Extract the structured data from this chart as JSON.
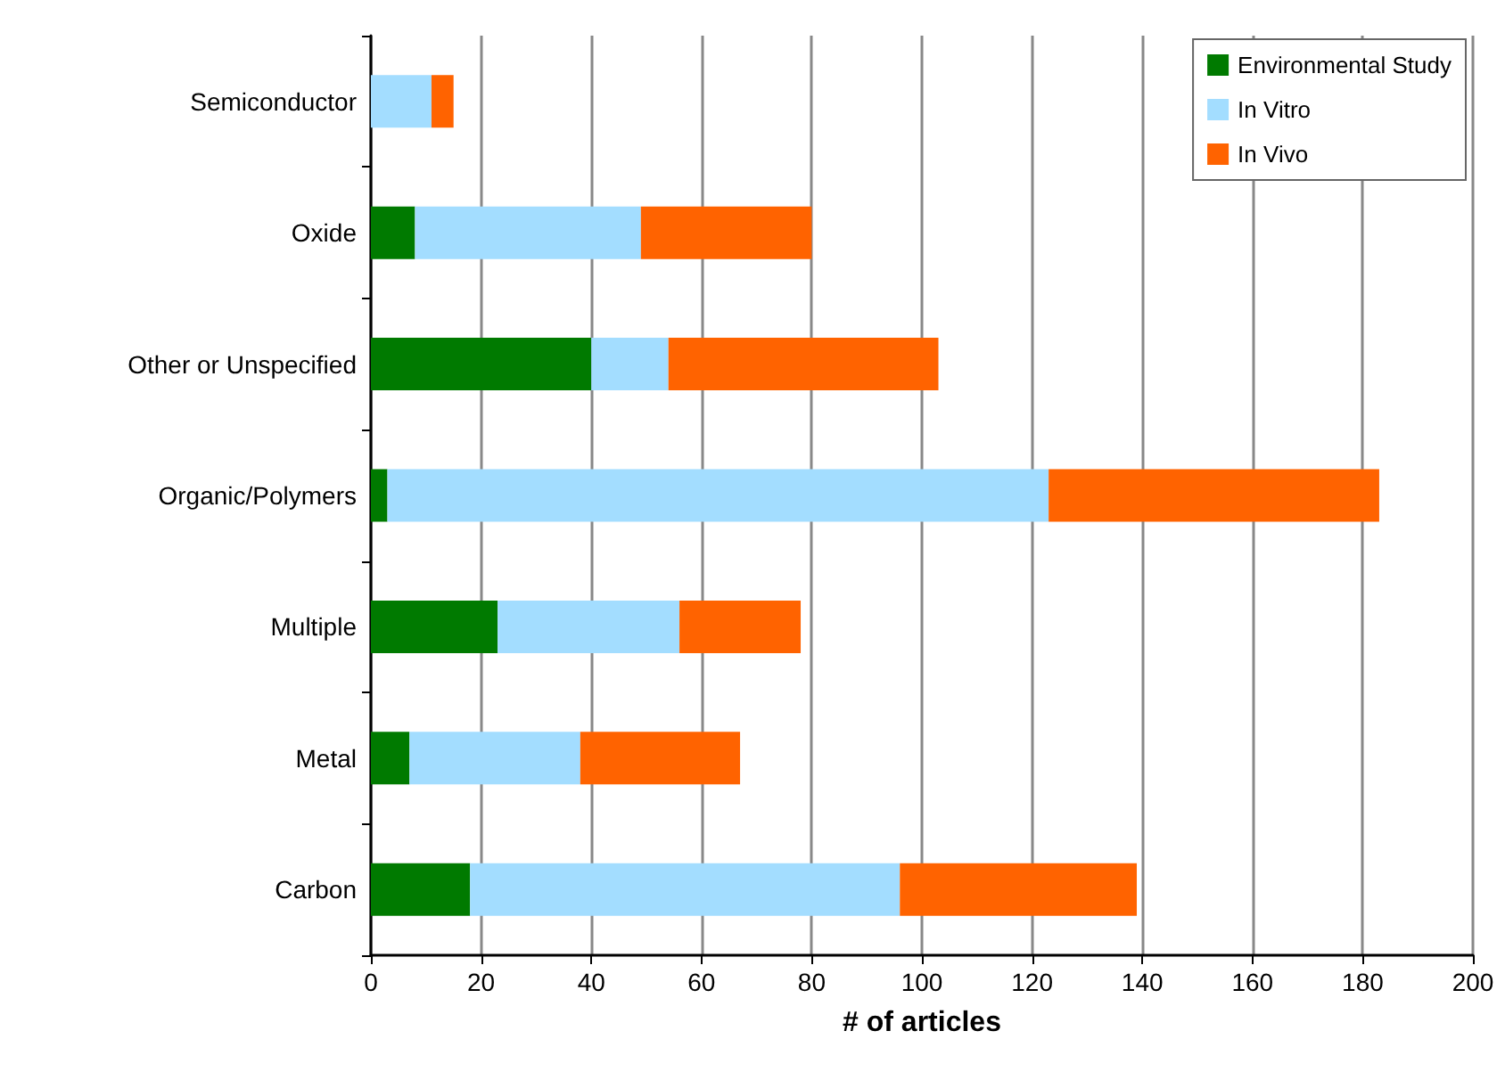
{
  "chart_data": {
    "type": "bar",
    "orientation": "horizontal",
    "stacked": true,
    "xlabel": "# of articles",
    "categories": [
      "Semiconductor",
      "Oxide",
      "Other or Unspecified",
      "Organic/Polymers",
      "Multiple",
      "Metal",
      "Carbon"
    ],
    "series": [
      {
        "name": "Environmental Study",
        "color": "#007a00",
        "values": [
          0,
          8,
          40,
          3,
          23,
          7,
          18
        ]
      },
      {
        "name": "In Vitro",
        "color": "#a3ddff",
        "values": [
          11,
          41,
          14,
          120,
          33,
          31,
          78
        ]
      },
      {
        "name": "In Vivo",
        "color": "#ff6300",
        "values": [
          4,
          31,
          49,
          60,
          22,
          29,
          43
        ]
      }
    ],
    "xlim": [
      0,
      200
    ],
    "xticks": [
      0,
      20,
      40,
      60,
      80,
      100,
      120,
      140,
      160,
      180,
      200
    ],
    "grid": "x",
    "legend": "top right"
  }
}
